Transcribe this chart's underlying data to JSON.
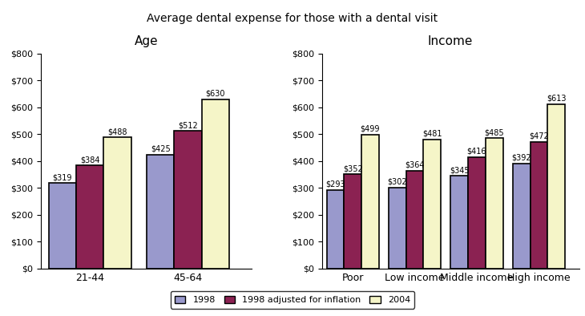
{
  "title": "Average dental expense for those with a dental visit",
  "left_title": "Age",
  "right_title": "Income",
  "age_categories": [
    "21-44",
    "45-64"
  ],
  "age_values": {
    "1998": [
      319,
      425
    ],
    "1998_adj": [
      384,
      512
    ],
    "2004": [
      488,
      630
    ]
  },
  "income_categories": [
    "Poor",
    "Low income",
    "Middle income",
    "High income"
  ],
  "income_values": {
    "1998": [
      293,
      302,
      345,
      392
    ],
    "1998_adj": [
      352,
      364,
      416,
      472
    ],
    "2004": [
      499,
      481,
      485,
      613
    ]
  },
  "colors": {
    "1998": "#9999cc",
    "1998_adj": "#8b2252",
    "2004": "#f5f5c8"
  },
  "legend_labels": [
    "1998",
    "1998 adjusted for inflation",
    "2004"
  ],
  "ylim": [
    0,
    800
  ],
  "yticks": [
    0,
    100,
    200,
    300,
    400,
    500,
    600,
    700,
    800
  ],
  "bar_width": 0.28,
  "label_fontsize": 7,
  "title_fontsize": 10,
  "subtitle_fontsize": 11
}
